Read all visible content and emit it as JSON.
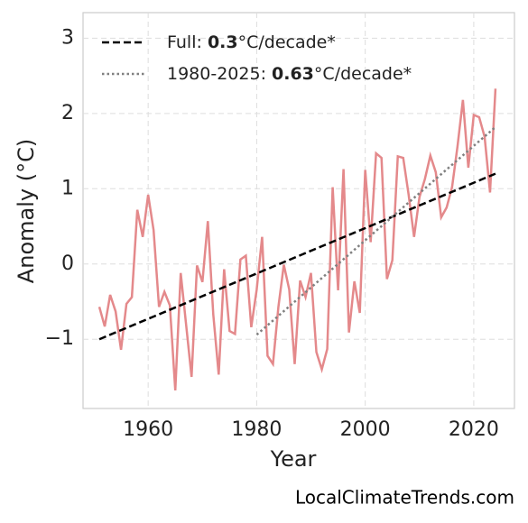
{
  "chart_data": {
    "type": "line",
    "xlabel": "Year",
    "ylabel": "Anomaly (°C)",
    "watermark": "LocalClimateTrends.com",
    "xlim": [
      1948,
      2027.5
    ],
    "ylim": [
      -1.92,
      3.34
    ],
    "xticks": [
      1960,
      1980,
      2000,
      2020
    ],
    "yticks": [
      {
        "value": -1,
        "label": "−1"
      },
      0,
      1,
      2,
      3
    ],
    "grid": true,
    "legend": "upper left",
    "series": [
      {
        "color": "#e4898b",
        "linestyle": "solid",
        "x": [
          1951,
          1952,
          1953,
          1954,
          1955,
          1956,
          1957,
          1958,
          1959,
          1960,
          1961,
          1962,
          1963,
          1964,
          1965,
          1966,
          1967,
          1968,
          1969,
          1970,
          1971,
          1972,
          1973,
          1974,
          1975,
          1976,
          1977,
          1978,
          1979,
          1980,
          1981,
          1982,
          1983,
          1984,
          1985,
          1986,
          1987,
          1988,
          1989,
          1990,
          1991,
          1992,
          1993,
          1994,
          1995,
          1996,
          1997,
          1998,
          1999,
          2000,
          2001,
          2002,
          2003,
          2004,
          2005,
          2006,
          2007,
          2008,
          2009,
          2010,
          2011,
          2012,
          2013,
          2014,
          2015,
          2016,
          2017,
          2018,
          2019,
          2020,
          2021,
          2022,
          2023,
          2024
        ],
        "values": [
          -0.57,
          -0.83,
          -0.41,
          -0.63,
          -1.14,
          -0.53,
          -0.44,
          0.72,
          0.36,
          0.92,
          0.45,
          -0.57,
          -0.37,
          -0.55,
          -1.68,
          -0.12,
          -0.81,
          -1.5,
          -0.02,
          -0.24,
          0.57,
          -0.67,
          -1.47,
          -0.07,
          -0.89,
          -0.93,
          0.06,
          0.11,
          -0.84,
          -0.34,
          0.36,
          -1.22,
          -1.33,
          -0.57,
          -0.01,
          -0.34,
          -1.33,
          -0.22,
          -0.44,
          -0.12,
          -1.17,
          -1.4,
          -1.13,
          1.02,
          -0.35,
          1.26,
          -0.91,
          -0.23,
          -0.65,
          1.25,
          0.29,
          1.47,
          1.41,
          -0.2,
          0.05,
          1.43,
          1.41,
          0.92,
          0.36,
          0.89,
          1.13,
          1.44,
          1.22,
          0.62,
          0.75,
          1.02,
          1.56,
          2.18,
          1.28,
          1.98,
          1.95,
          1.69,
          0.95,
          2.33
        ]
      },
      {
        "name": [
          "Full: ",
          "0.3",
          "°C/decade*"
        ],
        "color": "#000000",
        "linestyle": "dashed",
        "x": [
          1951,
          2024
        ],
        "values": [
          -1.0,
          1.2
        ]
      },
      {
        "name": [
          "1980-2025: ",
          "0.63",
          "°C/decade*"
        ],
        "color": "#808080",
        "linestyle": "dotted",
        "x": [
          1980,
          2024
        ],
        "values": [
          -0.94,
          1.82
        ]
      }
    ]
  }
}
